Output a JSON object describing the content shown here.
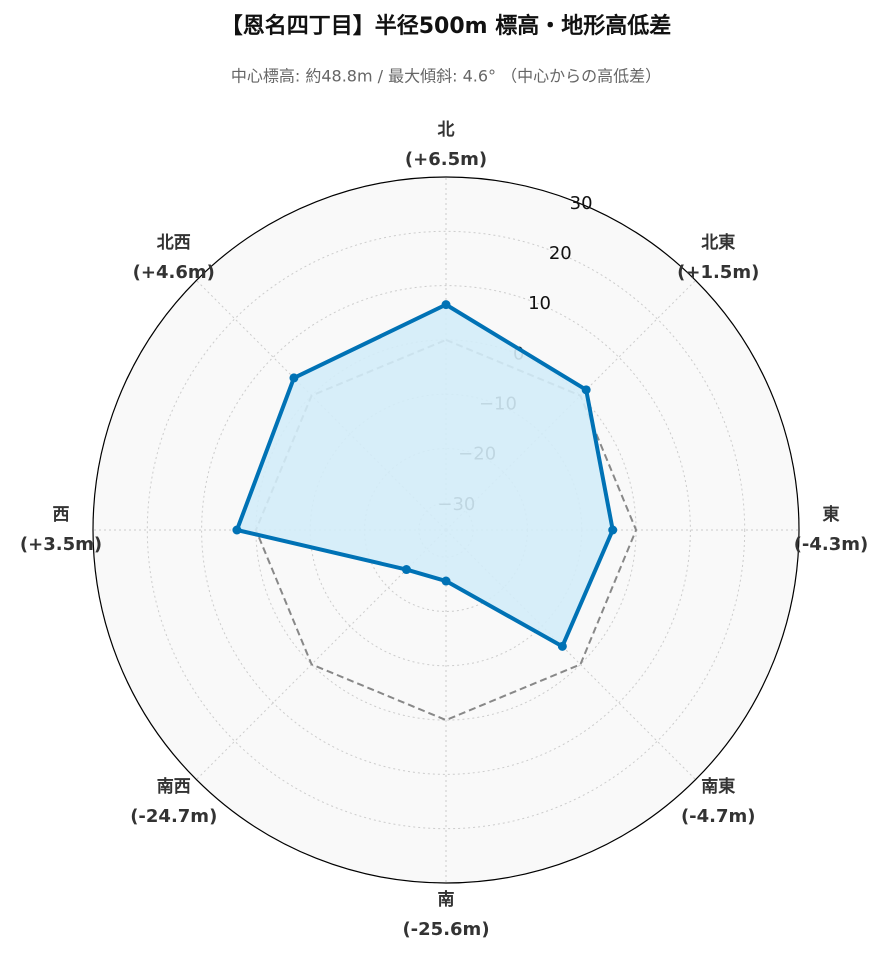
{
  "chart_data": {
    "type": "radar",
    "title": "【恩名四丁目】半径500m 標高・地形高低差",
    "subtitle": "中心標高: 約48.8m / 最大傾斜: 4.6° （中心からの高低差）",
    "categories": [
      "北",
      "北東",
      "東",
      "南東",
      "南",
      "南西",
      "西",
      "北西"
    ],
    "values": [
      6.5,
      1.5,
      -4.3,
      -4.7,
      -25.6,
      -24.7,
      3.5,
      4.6
    ],
    "value_labels": [
      "(+6.5m)",
      "(+1.5m)",
      "(-4.3m)",
      "(-4.7m)",
      "(-25.6m)",
      "(-24.7m)",
      "(+3.5m)",
      "(+4.6m)"
    ],
    "color": "#0072b5",
    "fill": "#d3ecf8",
    "baseline": 0,
    "ylim": [
      -35,
      30
    ],
    "yticks": [
      {
        "value": -30,
        "label": "−30"
      },
      {
        "value": -20,
        "label": "−20"
      },
      {
        "value": -10,
        "label": "−10"
      },
      0,
      10,
      20,
      30
    ],
    "grid": true
  }
}
